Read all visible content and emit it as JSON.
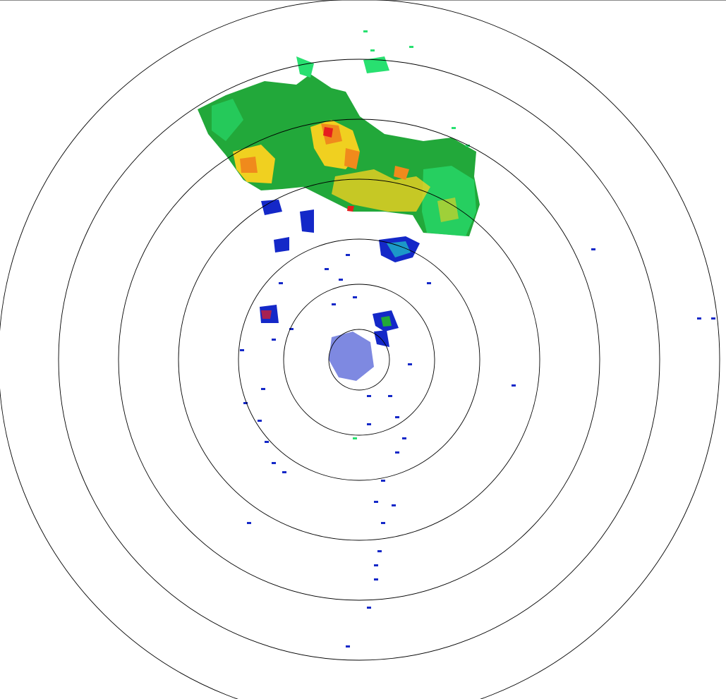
{
  "radar": {
    "range_ring_count": 7,
    "ring_color": "#000000",
    "background": "#ffffff",
    "reflectivity_colors": {
      "weak": "#1428c8",
      "light_cyan": "#20c8c8",
      "light_green": "#28e070",
      "green": "#22a83a",
      "yellow": "#f0d020",
      "orange": "#f08a1c",
      "red": "#e61e1e"
    }
  }
}
